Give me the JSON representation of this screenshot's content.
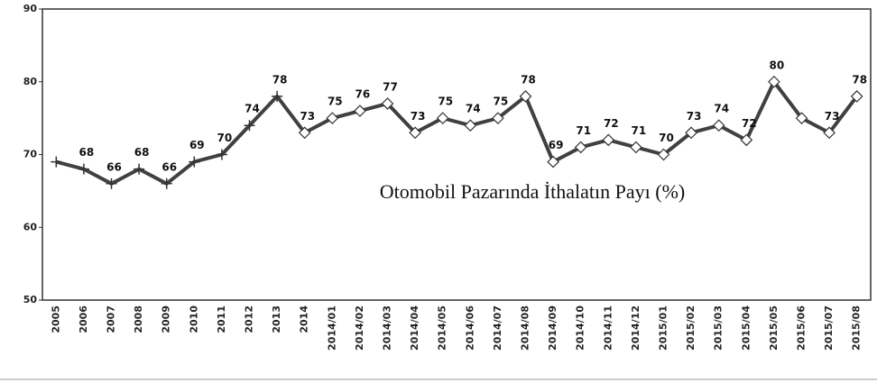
{
  "chart_data": {
    "type": "line",
    "annotation": "Otomobil Pazarında İthalatın Payı (%)",
    "categories": [
      "2005",
      "2006",
      "2007",
      "2008",
      "2009",
      "2010",
      "2011",
      "2012",
      "2013",
      "2014",
      "2014/01",
      "2014/02",
      "2014/03",
      "2014/04",
      "2014/05",
      "2014/06",
      "2014/07",
      "2014/08",
      "2014/09",
      "2014/10",
      "2014/11",
      "2014/12",
      "2015/01",
      "2015/02",
      "2015/03",
      "2015/04",
      "2015/05",
      "2015/06",
      "2015/07",
      "2015/08"
    ],
    "series": [
      {
        "color": "#404040",
        "values": [
          69,
          68,
          66,
          68,
          66,
          69,
          70,
          74,
          78,
          73,
          75,
          76,
          77,
          73,
          75,
          74,
          75,
          78,
          69,
          71,
          72,
          71,
          70,
          73,
          74,
          72,
          80,
          75,
          73,
          78
        ],
        "value_labels": [
          null,
          "68",
          "66",
          "68",
          "66",
          "69",
          "70",
          "74",
          "78",
          "73",
          "75",
          "76",
          "77",
          "73",
          "75",
          "74",
          "75",
          "78",
          "69",
          "71",
          "72",
          "71",
          "70",
          "73",
          "74",
          "72",
          "80",
          null,
          "73",
          "78"
        ],
        "markers": [
          "plus",
          "plus",
          "plus",
          "plus",
          "plus",
          "plus",
          "plus",
          "plus",
          "plus",
          "diamond",
          "diamond",
          "diamond",
          "diamond",
          "diamond",
          "diamond",
          "diamond",
          "diamond",
          "diamond",
          "diamond",
          "diamond",
          "diamond",
          "diamond",
          "diamond",
          "diamond",
          "diamond",
          "diamond",
          "diamond",
          "diamond",
          "diamond",
          "diamond"
        ]
      }
    ],
    "ylim": [
      50,
      90
    ],
    "yticks": [
      50,
      60,
      70,
      80,
      90
    ]
  }
}
